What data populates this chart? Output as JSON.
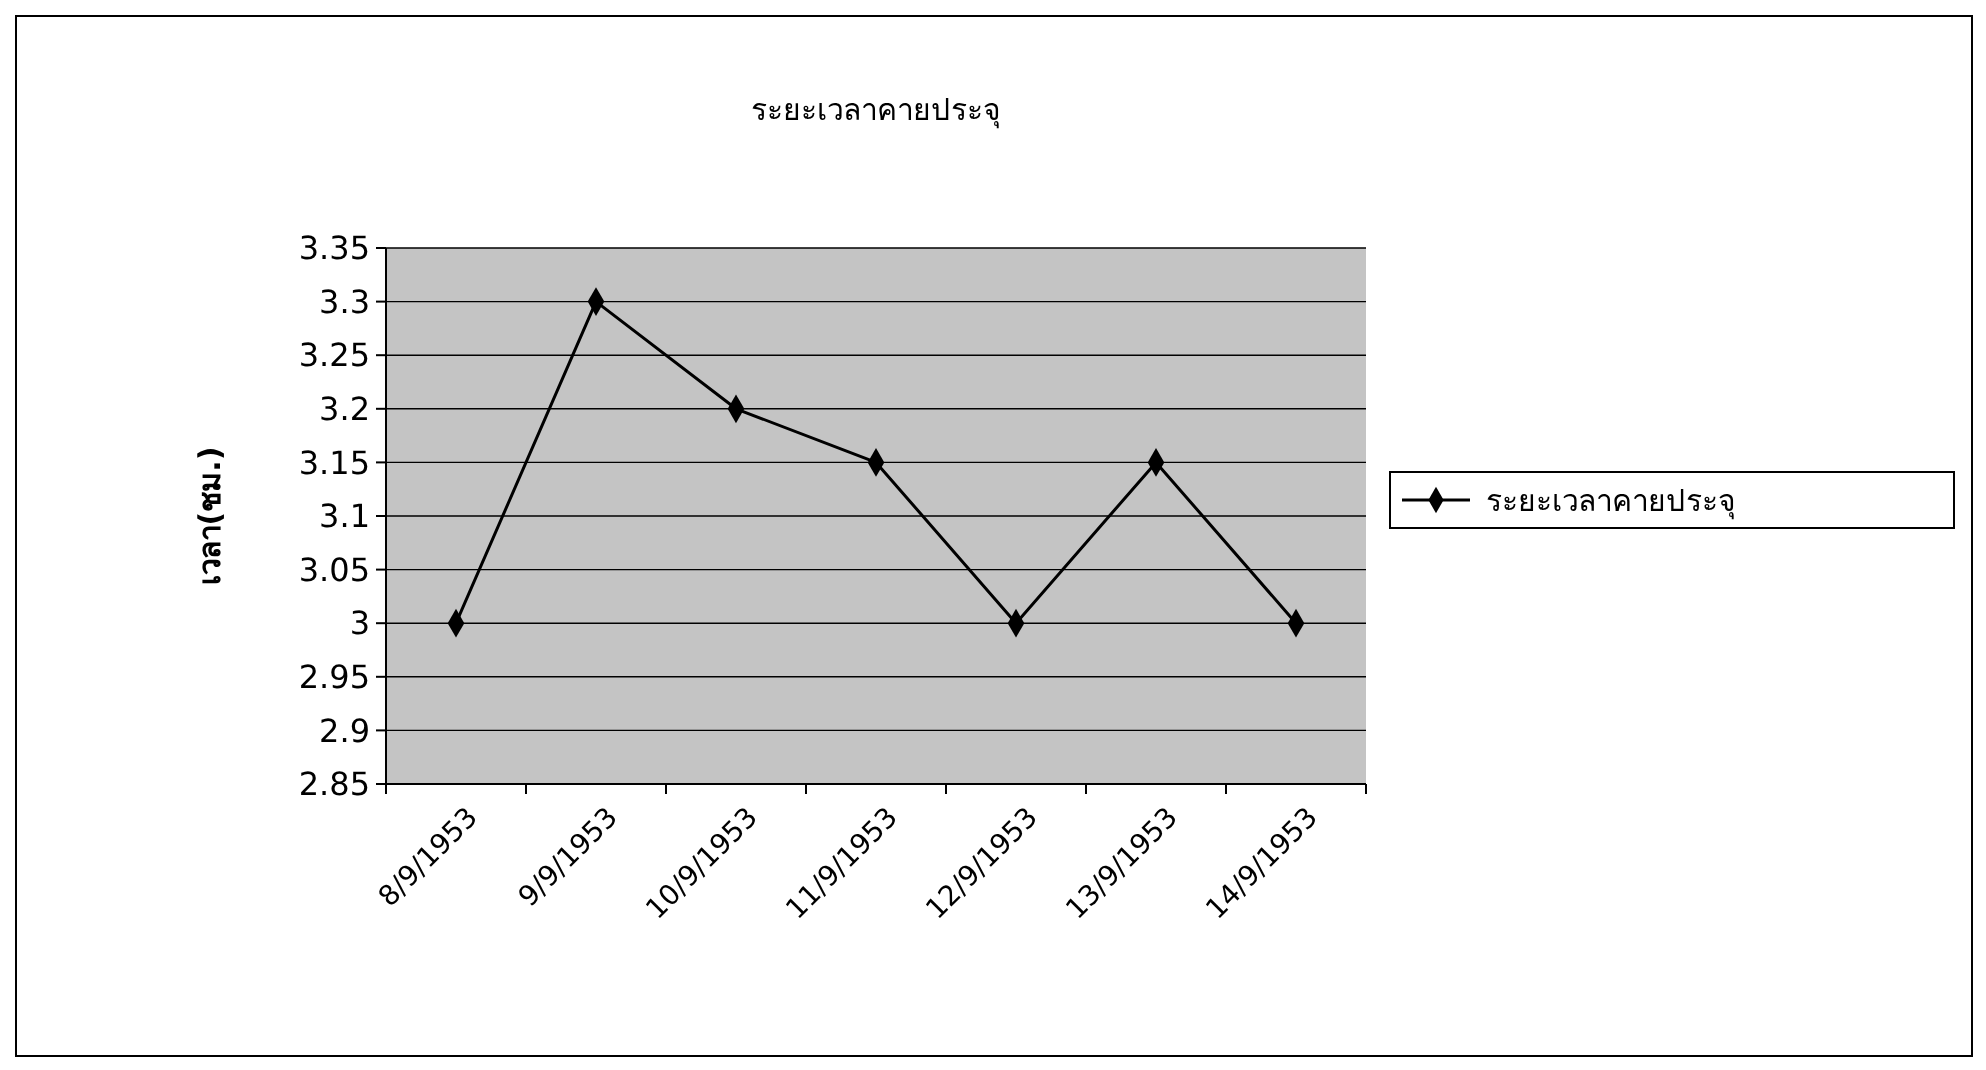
{
  "chart_data": {
    "type": "line",
    "title": "ระยะเวลาคายประจุ",
    "ylabel": "เวลา(ชม.)",
    "categories": [
      "8/9/1953",
      "9/9/1953",
      "10/9/1953",
      "11/9/1953",
      "12/9/1953",
      "13/9/1953",
      "14/9/1953"
    ],
    "series": [
      {
        "name": "ระยะเวลาคายประจุ",
        "color": "#000000",
        "values": [
          3,
          3.3,
          3.2,
          3.15,
          3,
          3.15,
          3
        ]
      }
    ],
    "ylim": [
      2.85,
      3.35
    ],
    "yticks": [
      2.85,
      2.9,
      2.95,
      3,
      3.05,
      3.1,
      3.15,
      3.2,
      3.25,
      3.3,
      3.35
    ],
    "grid": "y",
    "legend": "right",
    "marker": "diamond",
    "line_style": "solid"
  }
}
